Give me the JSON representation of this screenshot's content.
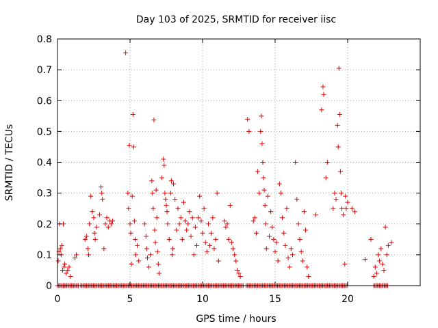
{
  "chart_data": {
    "type": "scatter",
    "title": "Day 103 of 2025, SRMTID for receiver iisc",
    "xlabel": "GPS time / hours",
    "ylabel": "SRMTID / TECUs",
    "xlim": [
      0,
      25
    ],
    "ylim": [
      0,
      0.8
    ],
    "x_ticks": [
      0,
      5,
      10,
      15,
      20
    ],
    "y_ticks": [
      0,
      0.1,
      0.2,
      0.3,
      0.4,
      0.5,
      0.6,
      0.7,
      0.8
    ],
    "x_tick_labels": [
      "0",
      "5",
      "10",
      "15",
      "20"
    ],
    "y_tick_labels": [
      "0",
      "0.1",
      "0.2",
      "0.3",
      "0.4",
      "0.5",
      "0.6",
      "0.7",
      "0.8"
    ],
    "grid": true,
    "marker": "+",
    "color": "#dd0000",
    "zero_rows": [
      {
        "x_start": 0.0,
        "x_end": 1.5,
        "step": 0.08
      },
      {
        "x_start": 1.6,
        "x_end": 12.8,
        "step": 0.08
      },
      {
        "x_start": 13.0,
        "x_end": 20.0,
        "step": 0.08
      },
      {
        "x_start": 21.8,
        "x_end": 22.8,
        "step": 0.08
      }
    ],
    "series": [
      {
        "name": "SRMTID",
        "points": [
          [
            0.05,
            0.08
          ],
          [
            0.1,
            0.11
          ],
          [
            0.15,
            0.2
          ],
          [
            0.2,
            0.12
          ],
          [
            0.25,
            0.1
          ],
          [
            0.3,
            0.13
          ],
          [
            0.35,
            0.05
          ],
          [
            0.4,
            0.2
          ],
          [
            0.45,
            0.06
          ],
          [
            0.5,
            0.07
          ],
          [
            0.6,
            0.04
          ],
          [
            0.7,
            0.05
          ],
          [
            0.8,
            0.06
          ],
          [
            0.9,
            0.03
          ],
          [
            1.2,
            0.09
          ],
          [
            1.3,
            0.1
          ],
          [
            1.9,
            0.15
          ],
          [
            2.0,
            0.16
          ],
          [
            2.1,
            0.12
          ],
          [
            2.15,
            0.1
          ],
          [
            2.2,
            0.2
          ],
          [
            2.3,
            0.29
          ],
          [
            2.4,
            0.24
          ],
          [
            2.5,
            0.22
          ],
          [
            2.55,
            0.17
          ],
          [
            2.6,
            0.15
          ],
          [
            2.7,
            0.19
          ],
          [
            2.9,
            0.23
          ],
          [
            3.0,
            0.32
          ],
          [
            3.05,
            0.3
          ],
          [
            3.1,
            0.28
          ],
          [
            3.2,
            0.12
          ],
          [
            3.3,
            0.2
          ],
          [
            3.4,
            0.22
          ],
          [
            3.5,
            0.19
          ],
          [
            3.6,
            0.21
          ],
          [
            3.7,
            0.2
          ],
          [
            3.8,
            0.21
          ],
          [
            4.7,
            0.755
          ],
          [
            4.85,
            0.3
          ],
          [
            4.9,
            0.25
          ],
          [
            4.95,
            0.455
          ],
          [
            5.0,
            0.2
          ],
          [
            5.05,
            0.17
          ],
          [
            5.1,
            0.07
          ],
          [
            5.15,
            0.29
          ],
          [
            5.2,
            0.555
          ],
          [
            5.25,
            0.45
          ],
          [
            5.3,
            0.21
          ],
          [
            5.35,
            0.15
          ],
          [
            5.4,
            0.1
          ],
          [
            5.5,
            0.13
          ],
          [
            5.6,
            0.08
          ],
          [
            6.0,
            0.2
          ],
          [
            6.1,
            0.16
          ],
          [
            6.15,
            0.12
          ],
          [
            6.2,
            0.09
          ],
          [
            6.3,
            0.06
          ],
          [
            6.4,
            0.1
          ],
          [
            6.5,
            0.34
          ],
          [
            6.55,
            0.3
          ],
          [
            6.6,
            0.25
          ],
          [
            6.65,
            0.537
          ],
          [
            6.7,
            0.18
          ],
          [
            6.75,
            0.14
          ],
          [
            6.8,
            0.31
          ],
          [
            6.85,
            0.22
          ],
          [
            6.9,
            0.11
          ],
          [
            6.95,
            0.07
          ],
          [
            7.0,
            0.04
          ],
          [
            7.2,
            0.35
          ],
          [
            7.3,
            0.41
          ],
          [
            7.35,
            0.39
          ],
          [
            7.4,
            0.3
          ],
          [
            7.45,
            0.28
          ],
          [
            7.5,
            0.26
          ],
          [
            7.55,
            0.24
          ],
          [
            7.6,
            0.2
          ],
          [
            7.7,
            0.15
          ],
          [
            7.8,
            0.3
          ],
          [
            7.85,
            0.34
          ],
          [
            7.9,
            0.1
          ],
          [
            7.95,
            0.12
          ],
          [
            8.0,
            0.33
          ],
          [
            8.1,
            0.28
          ],
          [
            8.2,
            0.18
          ],
          [
            8.3,
            0.25
          ],
          [
            8.4,
            0.2
          ],
          [
            8.5,
            0.22
          ],
          [
            8.6,
            0.15
          ],
          [
            8.7,
            0.27
          ],
          [
            8.8,
            0.21
          ],
          [
            8.9,
            0.18
          ],
          [
            9.0,
            0.2
          ],
          [
            9.1,
            0.24
          ],
          [
            9.2,
            0.16
          ],
          [
            9.3,
            0.22
          ],
          [
            9.4,
            0.1
          ],
          [
            9.5,
            0.19
          ],
          [
            9.6,
            0.13
          ],
          [
            9.7,
            0.22
          ],
          [
            9.8,
            0.29
          ],
          [
            9.9,
            0.21
          ],
          [
            10.0,
            0.17
          ],
          [
            10.1,
            0.25
          ],
          [
            10.2,
            0.14
          ],
          [
            10.3,
            0.11
          ],
          [
            10.4,
            0.2
          ],
          [
            10.5,
            0.13
          ],
          [
            10.6,
            0.17
          ],
          [
            10.7,
            0.22
          ],
          [
            10.8,
            0.12
          ],
          [
            10.9,
            0.15
          ],
          [
            11.0,
            0.3
          ],
          [
            11.1,
            0.08
          ],
          [
            11.5,
            0.21
          ],
          [
            11.6,
            0.19
          ],
          [
            11.7,
            0.2
          ],
          [
            11.8,
            0.15
          ],
          [
            11.9,
            0.26
          ],
          [
            12.0,
            0.14
          ],
          [
            12.1,
            0.12
          ],
          [
            12.2,
            0.1
          ],
          [
            12.3,
            0.08
          ],
          [
            12.4,
            0.05
          ],
          [
            12.5,
            0.04
          ],
          [
            12.6,
            0.03
          ],
          [
            13.1,
            0.54
          ],
          [
            13.2,
            0.5
          ],
          [
            13.5,
            0.21
          ],
          [
            13.6,
            0.22
          ],
          [
            13.7,
            0.17
          ],
          [
            13.8,
            0.37
          ],
          [
            13.9,
            0.3
          ],
          [
            14.0,
            0.5
          ],
          [
            14.05,
            0.55
          ],
          [
            14.1,
            0.46
          ],
          [
            14.15,
            0.4
          ],
          [
            14.2,
            0.35
          ],
          [
            14.25,
            0.31
          ],
          [
            14.3,
            0.26
          ],
          [
            14.35,
            0.2
          ],
          [
            14.4,
            0.12
          ],
          [
            14.5,
            0.29
          ],
          [
            14.6,
            0.16
          ],
          [
            14.7,
            0.24
          ],
          [
            14.8,
            0.19
          ],
          [
            14.9,
            0.15
          ],
          [
            15.0,
            0.11
          ],
          [
            15.1,
            0.14
          ],
          [
            15.2,
            0.08
          ],
          [
            15.3,
            0.33
          ],
          [
            15.4,
            0.3
          ],
          [
            15.5,
            0.22
          ],
          [
            15.6,
            0.17
          ],
          [
            15.7,
            0.13
          ],
          [
            15.8,
            0.25
          ],
          [
            15.9,
            0.09
          ],
          [
            16.0,
            0.06
          ],
          [
            16.1,
            0.12
          ],
          [
            16.2,
            0.1
          ],
          [
            16.4,
            0.4
          ],
          [
            16.5,
            0.28
          ],
          [
            16.6,
            0.2
          ],
          [
            16.7,
            0.15
          ],
          [
            16.8,
            0.11
          ],
          [
            16.9,
            0.08
          ],
          [
            17.0,
            0.24
          ],
          [
            17.1,
            0.18
          ],
          [
            17.2,
            0.06
          ],
          [
            17.3,
            0.03
          ],
          [
            17.8,
            0.23
          ],
          [
            18.2,
            0.57
          ],
          [
            18.3,
            0.645
          ],
          [
            18.35,
            0.62
          ],
          [
            18.5,
            0.35
          ],
          [
            18.6,
            0.4
          ],
          [
            19.0,
            0.25
          ],
          [
            19.1,
            0.3
          ],
          [
            19.2,
            0.28
          ],
          [
            19.3,
            0.52
          ],
          [
            19.35,
            0.45
          ],
          [
            19.4,
            0.705
          ],
          [
            19.45,
            0.555
          ],
          [
            19.5,
            0.37
          ],
          [
            19.55,
            0.3
          ],
          [
            19.6,
            0.25
          ],
          [
            19.7,
            0.23
          ],
          [
            19.8,
            0.07
          ],
          [
            19.85,
            0.29
          ],
          [
            19.9,
            0.25
          ],
          [
            20.0,
            0.27
          ],
          [
            20.3,
            0.25
          ],
          [
            20.5,
            0.24
          ],
          [
            21.2,
            0.085
          ],
          [
            21.6,
            0.15
          ],
          [
            21.8,
            0.03
          ],
          [
            21.9,
            0.06
          ],
          [
            22.0,
            0.04
          ],
          [
            22.1,
            0.1
          ],
          [
            22.2,
            0.08
          ],
          [
            22.3,
            0.12
          ],
          [
            22.4,
            0.07
          ],
          [
            22.5,
            0.05
          ],
          [
            22.6,
            0.19
          ],
          [
            22.7,
            0.1
          ],
          [
            22.8,
            0.13
          ],
          [
            23.0,
            0.14
          ]
        ]
      }
    ]
  }
}
